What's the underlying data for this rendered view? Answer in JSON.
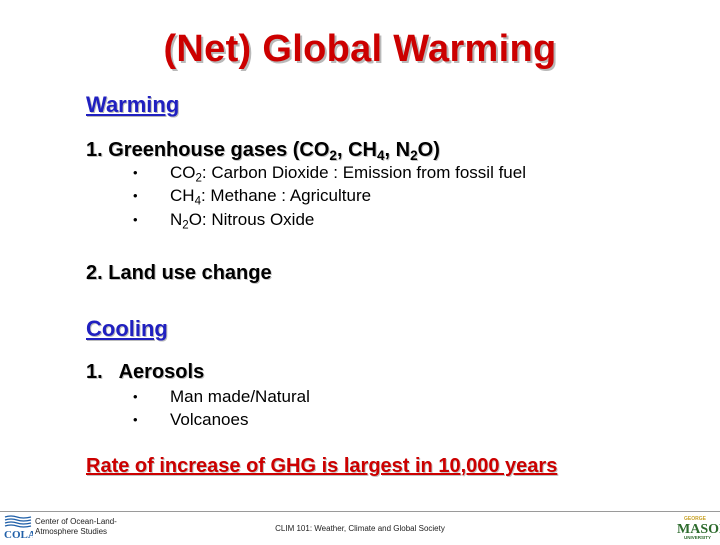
{
  "title": "(Net) Global Warming",
  "warming": {
    "heading": "Warming",
    "item1": {
      "pre": "1. Greenhouse gases (CO",
      "s1": "2",
      "m1": ", CH",
      "s2": "4",
      "m2": ", N",
      "s3": "2",
      "end": "O)"
    },
    "bullets": [
      {
        "pre": "CO",
        "sub": "2",
        "text": ": Carbon Dioxide : Emission from fossil fuel"
      },
      {
        "pre": "CH",
        "sub": "4",
        "text": ": Methane : Agriculture"
      },
      {
        "pre": "N",
        "sub": "2",
        "text": "O: Nitrous Oxide"
      }
    ],
    "item2": "2. Land use change"
  },
  "cooling": {
    "heading": "Cooling",
    "item1": "1.   Aerosols",
    "bullets": [
      "Man made/Natural",
      "Volcanoes"
    ]
  },
  "conclusion": "Rate of increase of GHG is largest in 10,000 years",
  "footer": {
    "left_logo": "COLA",
    "left_line1": "Center of Ocean-Land-",
    "left_line2": "Atmosphere Studies",
    "center": "CLIM 101: Weather, Climate and Global Society",
    "right_logo": "MASON",
    "right_top": "GEORGE",
    "right_bottom": "UNIVERSITY"
  },
  "colors": {
    "title": "#cc0000",
    "heading": "#2020c0",
    "conclusion": "#cc0000",
    "cola": "#1f5fa8",
    "mason": "#2d6b2d",
    "mason_accent": "#c9a227"
  }
}
